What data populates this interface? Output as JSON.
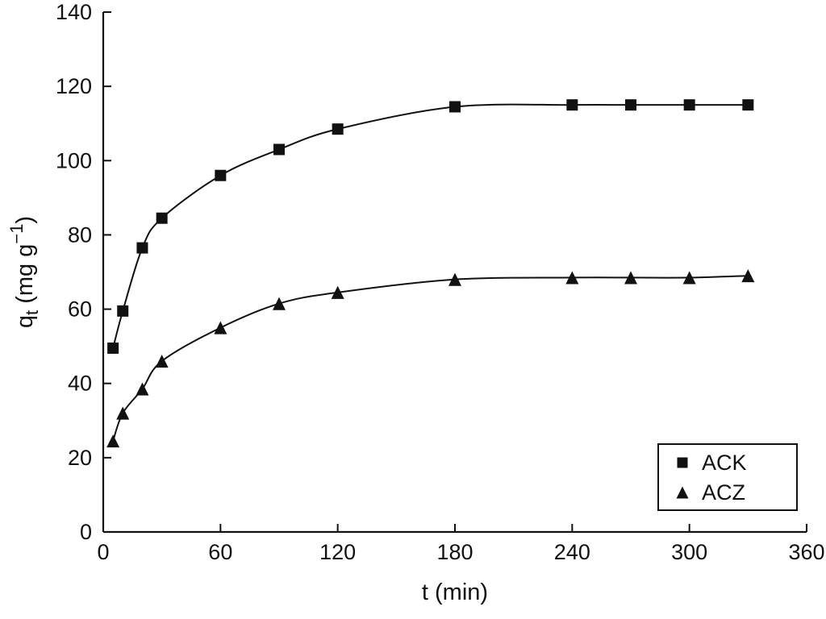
{
  "chart_data": {
    "type": "scatter",
    "title": "",
    "xlabel": "t (min)",
    "ylabel": "qt (mg g−1)",
    "ylabel_parts": [
      {
        "t": "q"
      },
      {
        "t": "t",
        "style": "sub"
      },
      {
        "t": " (mg g"
      },
      {
        "t": "−1",
        "style": "sup"
      },
      {
        "t": ")"
      }
    ],
    "xlim": [
      0,
      360
    ],
    "ylim": [
      0,
      140
    ],
    "xticks": [
      0,
      60,
      120,
      180,
      240,
      300,
      360
    ],
    "yticks": [
      0,
      20,
      40,
      60,
      80,
      100,
      120,
      140
    ],
    "x": [
      5,
      10,
      20,
      30,
      60,
      90,
      120,
      180,
      240,
      270,
      300,
      330
    ],
    "series": [
      {
        "name": "ACK",
        "marker": "square",
        "values": [
          49.5,
          59.5,
          76.5,
          84.5,
          96,
          103,
          108.5,
          114.5,
          115,
          115,
          115,
          115
        ]
      },
      {
        "name": "ACZ",
        "marker": "triangle",
        "values": [
          24.5,
          32,
          38.5,
          46,
          55,
          61.5,
          64.5,
          68,
          68.5,
          68.5,
          68.5,
          69
        ]
      }
    ],
    "legend": {
      "position": "bottom-right",
      "entries": [
        "ACK",
        "ACZ"
      ]
    },
    "colors": {
      "ink": "#111111",
      "background": "#ffffff"
    },
    "grid": "off"
  }
}
